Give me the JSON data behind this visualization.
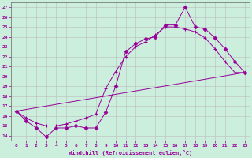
{
  "xlabel": "Windchill (Refroidissement éolien,°C)",
  "bg_color": "#cceedd",
  "line_color": "#990099",
  "grid_color": "#bbbbbb",
  "xlim": [
    -0.5,
    23.5
  ],
  "ylim": [
    13.5,
    27.5
  ],
  "yticks": [
    14,
    15,
    16,
    17,
    18,
    19,
    20,
    21,
    22,
    23,
    24,
    25,
    26,
    27
  ],
  "xticks": [
    0,
    1,
    2,
    3,
    4,
    5,
    6,
    7,
    8,
    9,
    10,
    11,
    12,
    13,
    14,
    15,
    16,
    17,
    18,
    19,
    20,
    21,
    22,
    23
  ],
  "line1_x": [
    0,
    1,
    2,
    3,
    4,
    5,
    6,
    7,
    8,
    9,
    10,
    11,
    12,
    13,
    14,
    15,
    16,
    17,
    18,
    19,
    20,
    21,
    22,
    23
  ],
  "line1_y": [
    16.5,
    15.5,
    14.8,
    13.9,
    14.8,
    14.8,
    15.0,
    14.8,
    14.8,
    16.4,
    19.0,
    22.5,
    23.3,
    23.8,
    24.0,
    25.2,
    25.2,
    27.0,
    25.0,
    24.8,
    23.9,
    22.8,
    21.5,
    20.4
  ],
  "line2_x": [
    0,
    1,
    2,
    3,
    4,
    5,
    6,
    7,
    8,
    9,
    10,
    11,
    12,
    13,
    14,
    15,
    16,
    17,
    18,
    19,
    20,
    21,
    22,
    23
  ],
  "line2_y": [
    16.5,
    15.8,
    15.3,
    15.0,
    15.0,
    15.2,
    15.5,
    15.8,
    16.2,
    18.8,
    20.5,
    22.0,
    23.0,
    23.5,
    24.2,
    25.0,
    25.0,
    24.8,
    24.5,
    23.9,
    22.8,
    21.5,
    20.4,
    20.4
  ],
  "line3_x": [
    0,
    23
  ],
  "line3_y": [
    16.5,
    20.4
  ]
}
